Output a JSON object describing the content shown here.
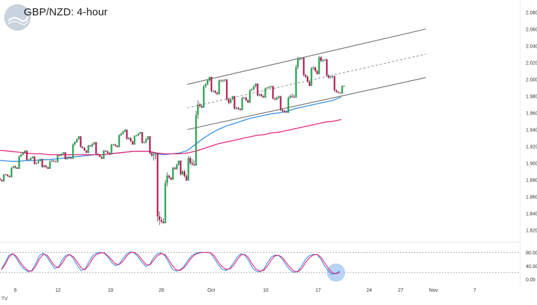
{
  "chart_title": "GBP/NZD: 4-hour",
  "chart_data": {
    "type": "candlestick",
    "price_axis": {
      "ticks": [
        "1.82000",
        "1.84000",
        "1.86000",
        "1.88000",
        "1.90000",
        "1.92000",
        "1.94000",
        "1.96000",
        "1.98000",
        "2.00000",
        "2.02000",
        "2.04000",
        "2.06000",
        "2.08000"
      ],
      "ylim": [
        1.808,
        2.088
      ]
    },
    "time_axis": {
      "ticks": [
        "6",
        "12",
        "19",
        "26",
        "Oct",
        "10",
        "17",
        "24",
        "27",
        "Nov",
        "7"
      ]
    },
    "ohlc_daily_approx": [
      {
        "d": "Sep 5",
        "o": 1.882,
        "h": 1.889,
        "l": 1.878,
        "c": 1.886
      },
      {
        "d": "Sep 6",
        "o": 1.886,
        "h": 1.898,
        "l": 1.883,
        "c": 1.896
      },
      {
        "d": "Sep 7",
        "o": 1.896,
        "h": 1.913,
        "l": 1.893,
        "c": 1.91
      },
      {
        "d": "Sep 8",
        "o": 1.91,
        "h": 1.915,
        "l": 1.9,
        "c": 1.904
      },
      {
        "d": "Sep 9",
        "o": 1.904,
        "h": 1.908,
        "l": 1.896,
        "c": 1.9
      },
      {
        "d": "Sep 10",
        "o": 1.9,
        "h": 1.905,
        "l": 1.892,
        "c": 1.897
      },
      {
        "d": "Sep 11",
        "o": 1.897,
        "h": 1.905,
        "l": 1.893,
        "c": 1.903
      },
      {
        "d": "Sep 12",
        "o": 1.903,
        "h": 1.912,
        "l": 1.901,
        "c": 1.909
      },
      {
        "d": "Sep 13",
        "o": 1.909,
        "h": 1.913,
        "l": 1.902,
        "c": 1.907
      },
      {
        "d": "Sep 14",
        "o": 1.907,
        "h": 1.928,
        "l": 1.905,
        "c": 1.925
      },
      {
        "d": "Sep 15",
        "o": 1.925,
        "h": 1.932,
        "l": 1.915,
        "c": 1.918
      },
      {
        "d": "Sep 16",
        "o": 1.918,
        "h": 1.924,
        "l": 1.912,
        "c": 1.92
      },
      {
        "d": "Sep 17",
        "o": 1.92,
        "h": 1.925,
        "l": 1.906,
        "c": 1.91
      },
      {
        "d": "Sep 18",
        "o": 1.91,
        "h": 1.918,
        "l": 1.905,
        "c": 1.914
      },
      {
        "d": "Sep 19",
        "o": 1.914,
        "h": 1.926,
        "l": 1.91,
        "c": 1.922
      },
      {
        "d": "Sep 20",
        "o": 1.922,
        "h": 1.938,
        "l": 1.919,
        "c": 1.935
      },
      {
        "d": "Sep 21",
        "o": 1.935,
        "h": 1.94,
        "l": 1.925,
        "c": 1.93
      },
      {
        "d": "Sep 22",
        "o": 1.93,
        "h": 1.936,
        "l": 1.922,
        "c": 1.933
      },
      {
        "d": "Sep 23",
        "o": 1.933,
        "h": 1.937,
        "l": 1.92,
        "c": 1.925
      },
      {
        "d": "Sep 24",
        "o": 1.925,
        "h": 1.932,
        "l": 1.905,
        "c": 1.909
      },
      {
        "d": "Sep 25",
        "o": 1.909,
        "h": 1.912,
        "l": 1.811,
        "c": 1.832
      },
      {
        "d": "Sep 26",
        "o": 1.832,
        "h": 1.892,
        "l": 1.828,
        "c": 1.885
      },
      {
        "d": "Sep 27",
        "o": 1.885,
        "h": 1.899,
        "l": 1.88,
        "c": 1.893
      },
      {
        "d": "Sep 28",
        "o": 1.893,
        "h": 1.903,
        "l": 1.881,
        "c": 1.89
      },
      {
        "d": "Sep 29",
        "o": 1.89,
        "h": 1.915,
        "l": 1.879,
        "c": 1.9
      },
      {
        "d": "Sep 30",
        "o": 1.9,
        "h": 1.978,
        "l": 1.897,
        "c": 1.97
      },
      {
        "d": "Oct 1",
        "o": 1.97,
        "h": 2.0,
        "l": 1.966,
        "c": 1.994
      },
      {
        "d": "Oct 2",
        "o": 1.994,
        "h": 2.003,
        "l": 1.98,
        "c": 1.986
      },
      {
        "d": "Oct 3",
        "o": 1.986,
        "h": 2.004,
        "l": 1.982,
        "c": 1.998
      },
      {
        "d": "Oct 4",
        "o": 1.998,
        "h": 2.0,
        "l": 1.968,
        "c": 1.972
      },
      {
        "d": "Oct 5",
        "o": 1.972,
        "h": 1.98,
        "l": 1.96,
        "c": 1.966
      },
      {
        "d": "Oct 6",
        "o": 1.966,
        "h": 1.983,
        "l": 1.963,
        "c": 1.978
      },
      {
        "d": "Oct 7",
        "o": 1.978,
        "h": 1.992,
        "l": 1.972,
        "c": 1.988
      },
      {
        "d": "Oct 8",
        "o": 1.988,
        "h": 1.995,
        "l": 1.976,
        "c": 1.982
      },
      {
        "d": "Oct 9",
        "o": 1.982,
        "h": 1.993,
        "l": 1.978,
        "c": 1.99
      },
      {
        "d": "Oct 10",
        "o": 1.99,
        "h": 1.992,
        "l": 1.972,
        "c": 1.976
      },
      {
        "d": "Oct 11",
        "o": 1.976,
        "h": 1.98,
        "l": 1.958,
        "c": 1.962
      },
      {
        "d": "Oct 12",
        "o": 1.962,
        "h": 1.984,
        "l": 1.96,
        "c": 1.98
      },
      {
        "d": "Oct 13",
        "o": 1.98,
        "h": 2.027,
        "l": 1.978,
        "c": 2.024
      },
      {
        "d": "Oct 14",
        "o": 2.024,
        "h": 2.026,
        "l": 1.998,
        "c": 2.003
      },
      {
        "d": "Oct 15",
        "o": 2.003,
        "h": 2.02,
        "l": 1.992,
        "c": 2.014
      },
      {
        "d": "Oct 16",
        "o": 2.014,
        "h": 2.033,
        "l": 2.006,
        "c": 2.022
      },
      {
        "d": "Oct 17",
        "o": 2.022,
        "h": 2.024,
        "l": 1.998,
        "c": 2.002
      },
      {
        "d": "Oct 18",
        "o": 2.002,
        "h": 2.004,
        "l": 1.981,
        "c": 1.985
      },
      {
        "d": "Oct 19",
        "o": 1.985,
        "h": 1.995,
        "l": 1.983,
        "c": 1.992
      }
    ],
    "moving_averages": [
      {
        "color": "#2e8ee8",
        "values": [
          1.903,
          1.902,
          1.902,
          1.903,
          1.903,
          1.904,
          1.904,
          1.905,
          1.906,
          1.907,
          1.908,
          1.909,
          1.91,
          1.91,
          1.911,
          1.912,
          1.913,
          1.914,
          1.914,
          1.914,
          1.911,
          1.91,
          1.911,
          1.912,
          1.915,
          1.922,
          1.929,
          1.935,
          1.94,
          1.944,
          1.947,
          1.95,
          1.953,
          1.955,
          1.957,
          1.959,
          1.96,
          1.962,
          1.965,
          1.967,
          1.969,
          1.971,
          1.973,
          1.975,
          1.979
        ]
      },
      {
        "color": "#e6247a",
        "values": [
          1.915,
          1.914,
          1.913,
          1.912,
          1.911,
          1.911,
          1.91,
          1.91,
          1.91,
          1.91,
          1.91,
          1.91,
          1.91,
          1.91,
          1.911,
          1.912,
          1.913,
          1.914,
          1.914,
          1.914,
          1.912,
          1.911,
          1.911,
          1.911,
          1.912,
          1.914,
          1.917,
          1.92,
          1.923,
          1.925,
          1.927,
          1.929,
          1.931,
          1.933,
          1.934,
          1.936,
          1.937,
          1.939,
          1.941,
          1.943,
          1.945,
          1.947,
          1.949,
          1.95,
          1.952
        ]
      }
    ],
    "channel": {
      "color": "#6a6a6a",
      "upper": [
        {
          "d": "Sep 29",
          "p": 1.994
        },
        {
          "d": "Oct 30",
          "p": 2.06
        }
      ],
      "mid": [
        {
          "d": "Sep 29",
          "p": 1.966
        },
        {
          "d": "Oct 30",
          "p": 2.03
        }
      ],
      "lower": [
        {
          "d": "Sep 29",
          "p": 1.94
        },
        {
          "d": "Oct 30",
          "p": 2.002
        }
      ]
    },
    "oscillator": {
      "levels": [
        "80.00",
        "40.00",
        "0.00"
      ],
      "ylim": [
        -4,
        100
      ],
      "reference_lines": [
        80,
        20
      ],
      "k": [
        30,
        50,
        72,
        76,
        62,
        42,
        30,
        22,
        26,
        46,
        70,
        78,
        66,
        48,
        32,
        36,
        58,
        72,
        74,
        60,
        40,
        26,
        30,
        52,
        70,
        78,
        80,
        78,
        66,
        50,
        40,
        46,
        62,
        76,
        82,
        78,
        66,
        50,
        38,
        44,
        64,
        76,
        78,
        70,
        50,
        30,
        24,
        28,
        38,
        56,
        70,
        76,
        80,
        80,
        80,
        78,
        62,
        44,
        30,
        26,
        32,
        48,
        66,
        76,
        72,
        56,
        34,
        24,
        22,
        30,
        50,
        66,
        72,
        70,
        58,
        40,
        26,
        20,
        24,
        40,
        60,
        70,
        74,
        74,
        60,
        40,
        24,
        14,
        18,
        24
      ],
      "d": [
        28,
        44,
        66,
        76,
        68,
        50,
        36,
        26,
        24,
        38,
        60,
        74,
        72,
        56,
        40,
        34,
        48,
        66,
        74,
        66,
        50,
        34,
        28,
        42,
        62,
        74,
        78,
        79,
        70,
        58,
        46,
        44,
        54,
        70,
        80,
        80,
        72,
        58,
        44,
        42,
        56,
        70,
        76,
        74,
        58,
        40,
        28,
        26,
        34,
        48,
        64,
        74,
        78,
        80,
        80,
        79,
        70,
        52,
        38,
        30,
        30,
        40,
        58,
        72,
        74,
        64,
        44,
        30,
        24,
        26,
        40,
        58,
        70,
        71,
        64,
        48,
        34,
        24,
        22,
        32,
        50,
        64,
        72,
        74,
        66,
        50,
        32,
        20,
        16,
        20
      ],
      "highlight_color": "#a7c8f2"
    }
  },
  "logo": {
    "brand_color": "#c9d3dd"
  },
  "footer_mark": "TV"
}
